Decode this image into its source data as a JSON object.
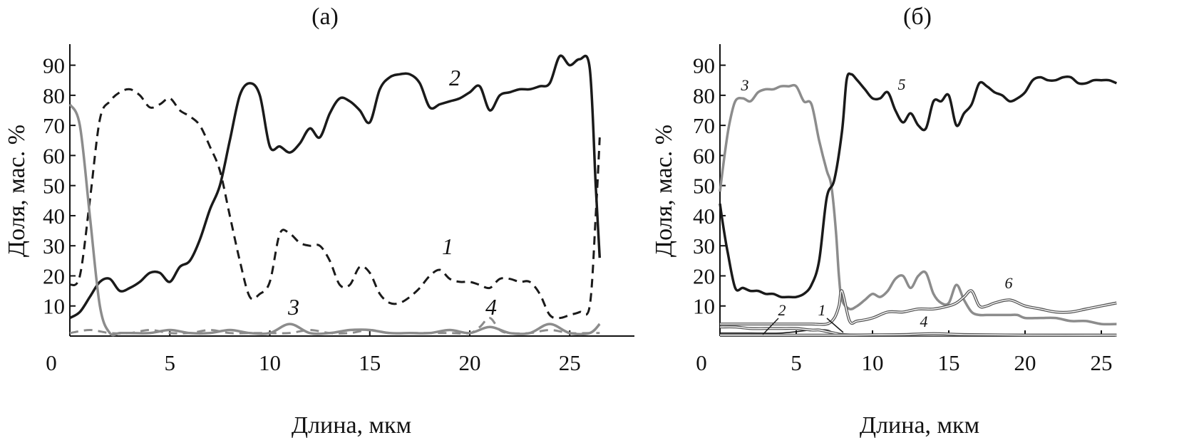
{
  "chart_data": [
    {
      "panel": "(а)",
      "type": "line",
      "xlabel": "Длина, мкм",
      "ylabel": "Доля, мас. %",
      "xlim": [
        0,
        28
      ],
      "ylim": [
        0,
        97
      ],
      "xticks": [
        0,
        5,
        10,
        15,
        20,
        25
      ],
      "yticks": [
        10,
        20,
        30,
        40,
        50,
        60,
        70,
        80,
        90
      ],
      "grid": false,
      "legend": "none",
      "series": [
        {
          "name": "1",
          "style": "dashed",
          "color": "#1a1a1a",
          "x": [
            0,
            0.5,
            1.0,
            1.5,
            2.0,
            2.5,
            3.0,
            3.5,
            4.0,
            4.5,
            5.0,
            5.5,
            6.0,
            6.5,
            7.0,
            7.5,
            8.0,
            8.5,
            9.0,
            9.5,
            10.0,
            10.5,
            11.0,
            11.5,
            12.0,
            12.5,
            13.0,
            13.5,
            14.0,
            14.5,
            15.0,
            15.5,
            16.0,
            16.5,
            17.0,
            17.5,
            18.0,
            18.5,
            19.0,
            19.5,
            20.0,
            20.5,
            21.0,
            21.5,
            22.0,
            22.5,
            23.0,
            23.5,
            24.0,
            24.5,
            25.0,
            25.5,
            26.0,
            26.3,
            26.5
          ],
          "values": [
            17,
            20,
            45,
            72,
            78,
            81,
            82,
            80,
            76,
            77,
            79,
            75,
            73,
            70,
            63,
            55,
            40,
            25,
            13,
            14,
            18,
            34,
            34,
            31,
            30,
            30,
            25,
            17,
            17,
            23,
            21,
            14,
            11,
            11,
            13,
            16,
            20,
            22,
            19,
            18,
            18,
            17,
            16,
            19,
            19,
            18,
            18,
            14,
            7,
            6,
            7,
            8,
            10,
            40,
            66
          ]
        },
        {
          "name": "2",
          "style": "solid",
          "color": "#1a1a1a",
          "x": [
            0,
            0.5,
            1.0,
            1.5,
            2.0,
            2.5,
            3.0,
            3.5,
            4.0,
            4.5,
            5.0,
            5.5,
            6.0,
            6.5,
            7.0,
            7.5,
            8.0,
            8.5,
            9.0,
            9.5,
            10.0,
            10.5,
            11.0,
            11.5,
            12.0,
            12.5,
            13.0,
            13.5,
            14.0,
            14.5,
            15.0,
            15.5,
            16.0,
            16.5,
            17.0,
            17.5,
            18.0,
            18.5,
            19.0,
            19.5,
            20.0,
            20.5,
            21.0,
            21.5,
            22.0,
            22.5,
            23.0,
            23.5,
            24.0,
            24.5,
            25.0,
            25.5,
            26.0,
            26.3,
            26.5
          ],
          "values": [
            6,
            8,
            13,
            18,
            19,
            15,
            16,
            18,
            21,
            21,
            18,
            23,
            25,
            32,
            42,
            50,
            65,
            80,
            84,
            80,
            63,
            63,
            61,
            64,
            69,
            66,
            74,
            79,
            78,
            75,
            71,
            82,
            86,
            87,
            87,
            84,
            76,
            77,
            78,
            79,
            81,
            83,
            75,
            80,
            81,
            82,
            82,
            83,
            84,
            93,
            90,
            92,
            89,
            50,
            26
          ]
        },
        {
          "name": "3",
          "style": "solid",
          "color": "#8c8c8c",
          "x": [
            0,
            0.5,
            1.0,
            1.5,
            2.0,
            2.5,
            3.0,
            4.0,
            5.0,
            6.0,
            7.0,
            8.0,
            9.0,
            10.0,
            11.0,
            12.0,
            13.0,
            14.0,
            15.0,
            16.0,
            17.0,
            18.0,
            19.0,
            20.0,
            21.0,
            22.0,
            23.0,
            24.0,
            25.0,
            26.0,
            26.5
          ],
          "values": [
            77,
            70,
            40,
            10,
            1,
            1,
            1,
            1,
            2,
            1,
            1,
            2,
            1,
            1,
            4,
            1,
            1,
            2,
            2,
            1,
            1,
            1,
            2,
            1,
            3,
            1,
            1,
            4,
            1,
            1,
            4
          ]
        },
        {
          "name": "4",
          "style": "dashed",
          "color": "#8c8c8c",
          "x": [
            0,
            1.0,
            2.0,
            3.0,
            4.0,
            5.0,
            6.0,
            7.0,
            8.0,
            9.0,
            10.0,
            11.0,
            12.0,
            13.0,
            14.0,
            15.0,
            16.0,
            17.0,
            18.0,
            19.0,
            20.0,
            20.5,
            21.0,
            21.5,
            22.0,
            23.0,
            24.0,
            25.0,
            26.0,
            26.5
          ],
          "values": [
            1,
            2,
            1,
            1,
            2,
            1,
            1,
            2,
            1,
            1,
            1,
            1,
            2,
            1,
            1,
            2,
            1,
            1,
            1,
            1,
            1,
            3,
            6,
            2,
            1,
            1,
            2,
            1,
            1,
            1
          ]
        }
      ],
      "annotations": [
        "1",
        "2",
        "3",
        "4"
      ]
    },
    {
      "panel": "(б)",
      "type": "line",
      "xlabel": "Длина, мкм",
      "ylabel": "Доля, мас. %",
      "xlim": [
        0,
        26
      ],
      "ylim": [
        0,
        97
      ],
      "xticks": [
        0,
        5,
        10,
        15,
        20,
        25
      ],
      "yticks": [
        10,
        20,
        30,
        40,
        50,
        60,
        70,
        80,
        90
      ],
      "grid": false,
      "legend": "none",
      "series": [
        {
          "name": "1",
          "style": "solid-thin",
          "color": "#1a1a1a",
          "x": [
            0,
            2,
            4,
            6,
            7,
            7.5,
            8,
            10,
            14,
            20,
            26
          ],
          "values": [
            1,
            1,
            1,
            2,
            2,
            1,
            0.5,
            0.5,
            0.5,
            0.5,
            0.5
          ]
        },
        {
          "name": "2",
          "style": "double",
          "color": "#555555",
          "x": [
            0,
            1,
            2,
            3,
            4,
            5,
            6,
            6.5,
            7,
            7.5,
            8,
            9,
            10,
            26
          ],
          "values": [
            3,
            3,
            2.5,
            2.5,
            2.5,
            2.5,
            2,
            2,
            1.5,
            1,
            0.5,
            0.3,
            0.3,
            0.3
          ]
        },
        {
          "name": "3",
          "style": "solid",
          "color": "#8c8c8c",
          "x": [
            0,
            0.3,
            0.6,
            1.0,
            1.5,
            2.0,
            2.5,
            3.0,
            3.5,
            4.0,
            4.5,
            5.0,
            5.5,
            6.0,
            6.5,
            7.0,
            7.3,
            7.6,
            7.8,
            8.0,
            8.5,
            9.0,
            9.5,
            10.0,
            10.5,
            11.0,
            11.5,
            12.0,
            12.5,
            13.0,
            13.5,
            14.0,
            14.5,
            15.0,
            15.5,
            16.0,
            16.5,
            17.0,
            17.5,
            18.0,
            18.5,
            19.0,
            19.5,
            20.0,
            21.0,
            22.0,
            23.0,
            24.0,
            25.0,
            26.0
          ],
          "values": [
            48,
            60,
            70,
            78,
            79,
            78,
            81,
            82,
            82,
            83,
            83,
            83,
            78,
            77,
            65,
            55,
            50,
            35,
            20,
            12,
            9,
            10,
            12,
            14,
            13,
            15,
            19,
            20,
            16,
            20,
            21,
            14,
            11,
            11,
            17,
            12,
            8,
            7,
            7,
            7,
            7,
            7,
            7,
            6,
            6,
            6,
            5,
            5,
            4,
            4
          ]
        },
        {
          "name": "4",
          "style": "double",
          "color": "#555555",
          "x": [
            0,
            5,
            8,
            10,
            12,
            14,
            16,
            20,
            26
          ],
          "values": [
            0.3,
            0.3,
            0.3,
            0.4,
            0.5,
            0.8,
            0.5,
            0.3,
            0.3
          ]
        },
        {
          "name": "5",
          "style": "solid",
          "color": "#1a1a1a",
          "x": [
            0,
            0.2,
            0.5,
            1.0,
            1.5,
            2.0,
            2.5,
            3.0,
            3.5,
            4.0,
            4.5,
            5.0,
            5.5,
            6.0,
            6.5,
            7.0,
            7.5,
            8.0,
            8.3,
            8.6,
            9.0,
            9.5,
            10.0,
            10.5,
            11.0,
            11.5,
            12.0,
            12.5,
            13.0,
            13.5,
            14.0,
            14.5,
            15.0,
            15.5,
            16.0,
            16.5,
            17.0,
            17.5,
            18.0,
            18.5,
            19.0,
            19.5,
            20.0,
            20.5,
            21.0,
            21.5,
            22.0,
            22.5,
            23.0,
            23.5,
            24.0,
            24.5,
            25.0,
            25.5,
            26.0
          ],
          "values": [
            44,
            37,
            28,
            16,
            16,
            15,
            15,
            14,
            14,
            13,
            13,
            13,
            14,
            17,
            25,
            46,
            52,
            68,
            85,
            87,
            85,
            82,
            79,
            79,
            81,
            75,
            71,
            74,
            70,
            69,
            78,
            78,
            80,
            70,
            74,
            77,
            84,
            83,
            81,
            80,
            78,
            79,
            81,
            85,
            86,
            85,
            85,
            86,
            86,
            84,
            84,
            85,
            85,
            85,
            84
          ]
        },
        {
          "name": "6",
          "style": "double",
          "color": "#555555",
          "x": [
            0,
            1,
            2,
            3,
            4,
            5,
            6,
            7,
            7.5,
            7.8,
            8.0,
            8.5,
            9,
            10,
            11,
            12,
            13,
            14,
            15,
            15.5,
            16,
            16.5,
            17,
            17.5,
            18,
            19,
            20,
            21,
            22,
            23,
            24,
            25,
            26
          ],
          "values": [
            4,
            4,
            4,
            4,
            4,
            4,
            4,
            4,
            6,
            10,
            15,
            5,
            5,
            6,
            8,
            8,
            9,
            9,
            10,
            11,
            13,
            15,
            10,
            10,
            11,
            12,
            10,
            9,
            8,
            8,
            9,
            10,
            11
          ]
        }
      ],
      "annotations": [
        "1",
        "2",
        "3",
        "4",
        "5",
        "6"
      ]
    }
  ]
}
